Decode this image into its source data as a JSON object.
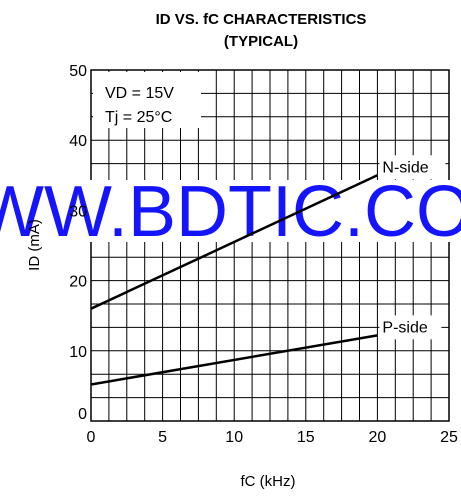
{
  "chart_data": {
    "type": "line",
    "title": "ID VS. fC CHARACTERISTICS",
    "subtitle": "(TYPICAL)",
    "xlabel": "fC (kHz)",
    "ylabel": "ID (mA)",
    "xlim": [
      0,
      25
    ],
    "ylim": [
      0,
      50
    ],
    "x_ticks": [
      "0",
      "5",
      "10",
      "15",
      "20",
      "25"
    ],
    "y_ticks": [
      "0",
      "10",
      "20",
      "30",
      "40",
      "50"
    ],
    "grid": true,
    "conditions": [
      "VD = 15V",
      "Tj = 25°C"
    ],
    "series": [
      {
        "name": "N-side",
        "x": [
          0,
          20
        ],
        "y": [
          16,
          35
        ]
      },
      {
        "name": "P-side",
        "x": [
          0,
          20
        ],
        "y": [
          5.2,
          12.2
        ]
      }
    ]
  },
  "watermark": "WWW.BDTIC.COM",
  "colors": {
    "watermark": "#1414ff",
    "line": "#000000",
    "grid": "#000000"
  }
}
